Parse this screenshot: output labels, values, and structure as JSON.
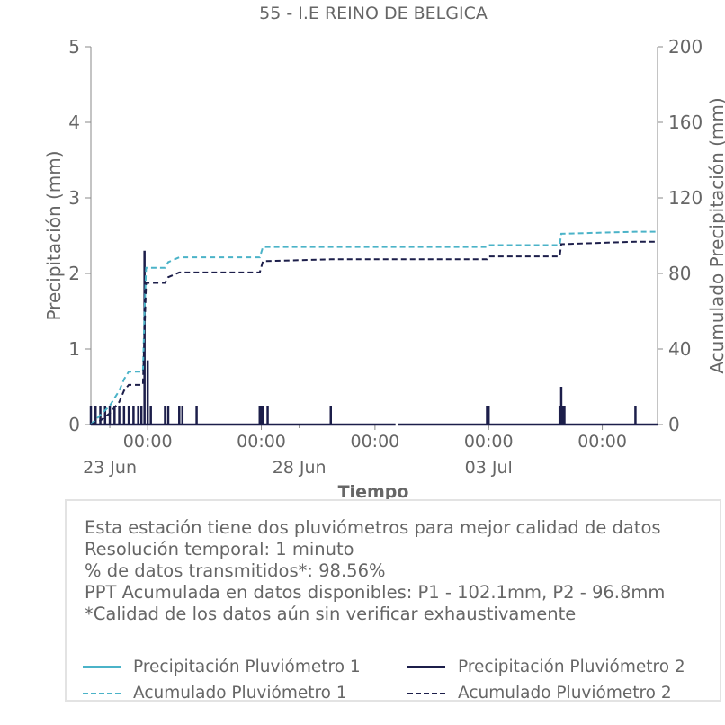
{
  "chart_data": {
    "type": "line",
    "title": "55 - I.E REINO DE BELGICA",
    "xlabel": "Tiempo",
    "ylabel": "Precipitación (mm)",
    "y2label": "Acumulado Precipitación (mm)",
    "ylim": [
      0,
      5
    ],
    "y2lim": [
      0,
      200
    ],
    "yticks": [
      "0",
      "1",
      "2",
      "3",
      "4",
      "5"
    ],
    "y2ticks": [
      "0",
      "40",
      "80",
      "120",
      "160",
      "200"
    ],
    "xlim": [
      "2024-06-22T12:00",
      "2024-07-07T11:00"
    ],
    "xticks_major": [
      {
        "x": "2024-06-24T00:00",
        "label": "00:00"
      },
      {
        "x": "2024-06-27T00:00",
        "label": "00:00"
      },
      {
        "x": "2024-06-30T00:00",
        "label": "00:00"
      },
      {
        "x": "2024-07-03T00:00",
        "label": "00:00"
      },
      {
        "x": "2024-07-06T00:00",
        "label": "00:00"
      }
    ],
    "xticks_date": [
      {
        "x": "2024-06-23T00:00",
        "label": "23 Jun"
      },
      {
        "x": "2024-06-28T00:00",
        "label": "28 Jun"
      },
      {
        "x": "2024-07-03T00:00",
        "label": "03 Jul"
      }
    ],
    "grid": false,
    "gaps": [
      [
        "2024-06-30T13:00",
        "2024-06-30T14:30"
      ]
    ],
    "series": [
      {
        "name": "Precipitación Pluviómetro 1",
        "axis": "left",
        "style": "solid",
        "color": "#4bb3c8",
        "x": [],
        "y": []
      },
      {
        "name": "Precipitación Pluviómetro 2",
        "axis": "left",
        "style": "solid",
        "color": "#1c1e4a",
        "x": [
          "2024-06-22T12:00",
          "2024-06-22T15:00",
          "2024-06-22T18:00",
          "2024-06-22T21:00",
          "2024-06-23T00:00",
          "2024-06-23T03:00",
          "2024-06-23T06:00",
          "2024-06-23T09:00",
          "2024-06-23T12:00",
          "2024-06-23T15:00",
          "2024-06-23T18:00",
          "2024-06-23T20:00",
          "2024-06-23T22:00",
          "2024-06-24T00:00",
          "2024-06-24T02:00",
          "2024-06-24T11:00",
          "2024-06-24T13:00",
          "2024-06-24T20:00",
          "2024-06-24T22:00",
          "2024-06-25T07:00",
          "2024-06-26T23:00",
          "2024-06-27T00:00",
          "2024-06-27T01:00",
          "2024-06-27T04:00",
          "2024-06-28T20:00",
          "2024-07-02T23:00",
          "2024-07-03T00:00",
          "2024-07-04T21:00",
          "2024-07-04T22:00",
          "2024-07-04T23:00",
          "2024-07-05T00:00",
          "2024-07-06T21:00"
        ],
        "y": [
          0.25,
          0.25,
          0.25,
          0.25,
          0.25,
          0.25,
          0.25,
          0.25,
          0.25,
          0.25,
          0.25,
          0.25,
          2.3,
          0.85,
          0.25,
          0.25,
          0.25,
          0.25,
          0.25,
          0.25,
          0.25,
          0.25,
          0.25,
          0.25,
          0.25,
          0.25,
          0.25,
          0.25,
          0.5,
          0.25,
          0.25,
          0.25
        ]
      },
      {
        "name": "Acumulado Pluviómetro 1",
        "axis": "right",
        "style": "dashed",
        "color": "#4bb3c8",
        "x": [
          "2024-06-22T12:00",
          "2024-06-22T18:00",
          "2024-06-23T00:00",
          "2024-06-23T06:00",
          "2024-06-23T09:00",
          "2024-06-23T12:00",
          "2024-06-23T21:00",
          "2024-06-23T22:00",
          "2024-06-23T23:00",
          "2024-06-24T11:00",
          "2024-06-24T13:00",
          "2024-06-24T20:00",
          "2024-06-26T23:00",
          "2024-06-27T01:00",
          "2024-06-28T20:00",
          "2024-07-02T23:00",
          "2024-07-03T00:00",
          "2024-07-04T21:00",
          "2024-07-04T22:00",
          "2024-07-06T21:00",
          "2024-07-07T11:00"
        ],
        "y": [
          0,
          5,
          10,
          18,
          24,
          28,
          28,
          60,
          83,
          83,
          86,
          88.5,
          88.5,
          94,
          94,
          94,
          95,
          95,
          101,
          102.1,
          102.1
        ]
      },
      {
        "name": "Acumulado Pluviómetro 2",
        "axis": "right",
        "style": "dashed",
        "color": "#1c1e4a",
        "x": [
          "2024-06-22T12:00",
          "2024-06-22T18:00",
          "2024-06-23T00:00",
          "2024-06-23T06:00",
          "2024-06-23T09:00",
          "2024-06-23T12:00",
          "2024-06-23T21:00",
          "2024-06-23T22:00",
          "2024-06-23T23:00",
          "2024-06-24T11:00",
          "2024-06-24T13:00",
          "2024-06-24T20:00",
          "2024-06-26T23:00",
          "2024-06-27T01:00",
          "2024-06-28T20:00",
          "2024-07-02T23:00",
          "2024-07-03T00:00",
          "2024-07-04T21:00",
          "2024-07-04T22:00",
          "2024-07-06T21:00",
          "2024-07-07T11:00"
        ],
        "y": [
          0,
          2,
          6,
          12,
          18,
          21,
          21,
          50,
          75,
          75,
          78,
          80.5,
          80.5,
          86.5,
          87.5,
          87.5,
          89,
          89,
          95.5,
          96.8,
          96.8
        ]
      }
    ]
  },
  "info": {
    "lines": [
      "Esta estación tiene dos pluviómetros para mejor calidad de datos",
      "Resolución temporal: 1 minuto",
      "% de datos transmitidos*: 98.56%",
      "PPT Acumulada en datos disponibles: P1 - 102.1mm, P2 - 96.8mm",
      "*Calidad de los datos aún sin verificar exhaustivamente"
    ]
  },
  "colors": {
    "text": "#666666",
    "axis": "#888888",
    "p1": "#4bb3c8",
    "p2": "#1c1e4a",
    "box_border": "#e3e3e3"
  }
}
